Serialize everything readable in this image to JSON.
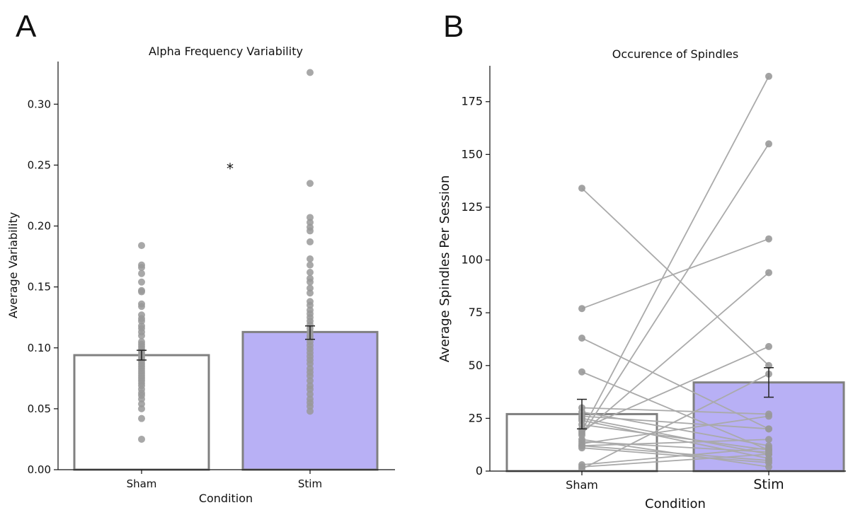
{
  "panel_labels": [
    "A",
    "B"
  ],
  "colors": {
    "sham_fill": "#ffffff",
    "stim_fill": "#b8b0f5",
    "bar_edge": "#808080",
    "points": "#999999",
    "lines": "#aaaaaa",
    "error": "#222222"
  },
  "chart_data": [
    {
      "type": "bar",
      "title": "Alpha Frequency Variability",
      "xlabel": "Condition",
      "ylabel": "Average Variability",
      "categories": [
        "Sham",
        "Stim"
      ],
      "values": [
        0.094,
        0.113
      ],
      "error": [
        [
          0.09,
          0.098
        ],
        [
          0.107,
          0.118
        ]
      ],
      "ylim": [
        0,
        0.335
      ],
      "yticks": [
        0.0,
        0.05,
        0.1,
        0.15,
        0.2,
        0.25,
        0.3
      ],
      "ytick_labels": [
        "0.00",
        "0.05",
        "0.10",
        "0.15",
        "0.20",
        "0.25",
        "0.30"
      ],
      "annotation": "*",
      "annotation_y": 0.25,
      "points": {
        "Sham": [
          0.184,
          0.168,
          0.166,
          0.161,
          0.154,
          0.147,
          0.146,
          0.136,
          0.134,
          0.127,
          0.124,
          0.122,
          0.118,
          0.116,
          0.113,
          0.11,
          0.105,
          0.103,
          0.101,
          0.099,
          0.097,
          0.095,
          0.093,
          0.091,
          0.089,
          0.087,
          0.085,
          0.083,
          0.081,
          0.079,
          0.077,
          0.075,
          0.073,
          0.071,
          0.069,
          0.066,
          0.063,
          0.061,
          0.058,
          0.054,
          0.05,
          0.042,
          0.025
        ],
        "Stim": [
          0.326,
          0.235,
          0.207,
          0.203,
          0.199,
          0.196,
          0.187,
          0.173,
          0.168,
          0.162,
          0.157,
          0.154,
          0.149,
          0.145,
          0.138,
          0.135,
          0.131,
          0.128,
          0.125,
          0.122,
          0.119,
          0.116,
          0.113,
          0.11,
          0.108,
          0.105,
          0.102,
          0.099,
          0.096,
          0.093,
          0.09,
          0.087,
          0.083,
          0.08,
          0.077,
          0.073,
          0.069,
          0.066,
          0.062,
          0.058,
          0.055,
          0.052,
          0.048
        ]
      },
      "grid": false
    },
    {
      "type": "bar",
      "title": "Occurence of Spindles",
      "xlabel": "Condition",
      "ylabel": "Average Spindles Per Session",
      "categories": [
        "Sham",
        "Stim"
      ],
      "values": [
        27,
        42
      ],
      "error": [
        [
          20,
          34
        ],
        [
          35,
          49
        ]
      ],
      "ylim": [
        0,
        192
      ],
      "yticks": [
        0,
        25,
        50,
        75,
        100,
        125,
        150,
        175
      ],
      "ytick_labels": [
        "0",
        "25",
        "50",
        "75",
        "100",
        "125",
        "150",
        "175"
      ],
      "paired": [
        [
          134,
          50
        ],
        [
          77,
          110
        ],
        [
          63,
          20
        ],
        [
          47,
          10
        ],
        [
          30,
          27
        ],
        [
          28,
          12
        ],
        [
          26,
          20
        ],
        [
          25,
          8
        ],
        [
          24,
          6
        ],
        [
          22,
          10
        ],
        [
          20,
          59
        ],
        [
          19,
          187
        ],
        [
          18,
          94
        ],
        [
          17,
          155
        ],
        [
          15,
          2
        ],
        [
          14,
          9
        ],
        [
          13,
          26
        ],
        [
          12,
          5
        ],
        [
          12,
          15
        ],
        [
          11,
          4
        ],
        [
          3,
          11
        ],
        [
          2,
          8
        ],
        [
          1,
          46
        ]
      ],
      "grid": false
    }
  ]
}
